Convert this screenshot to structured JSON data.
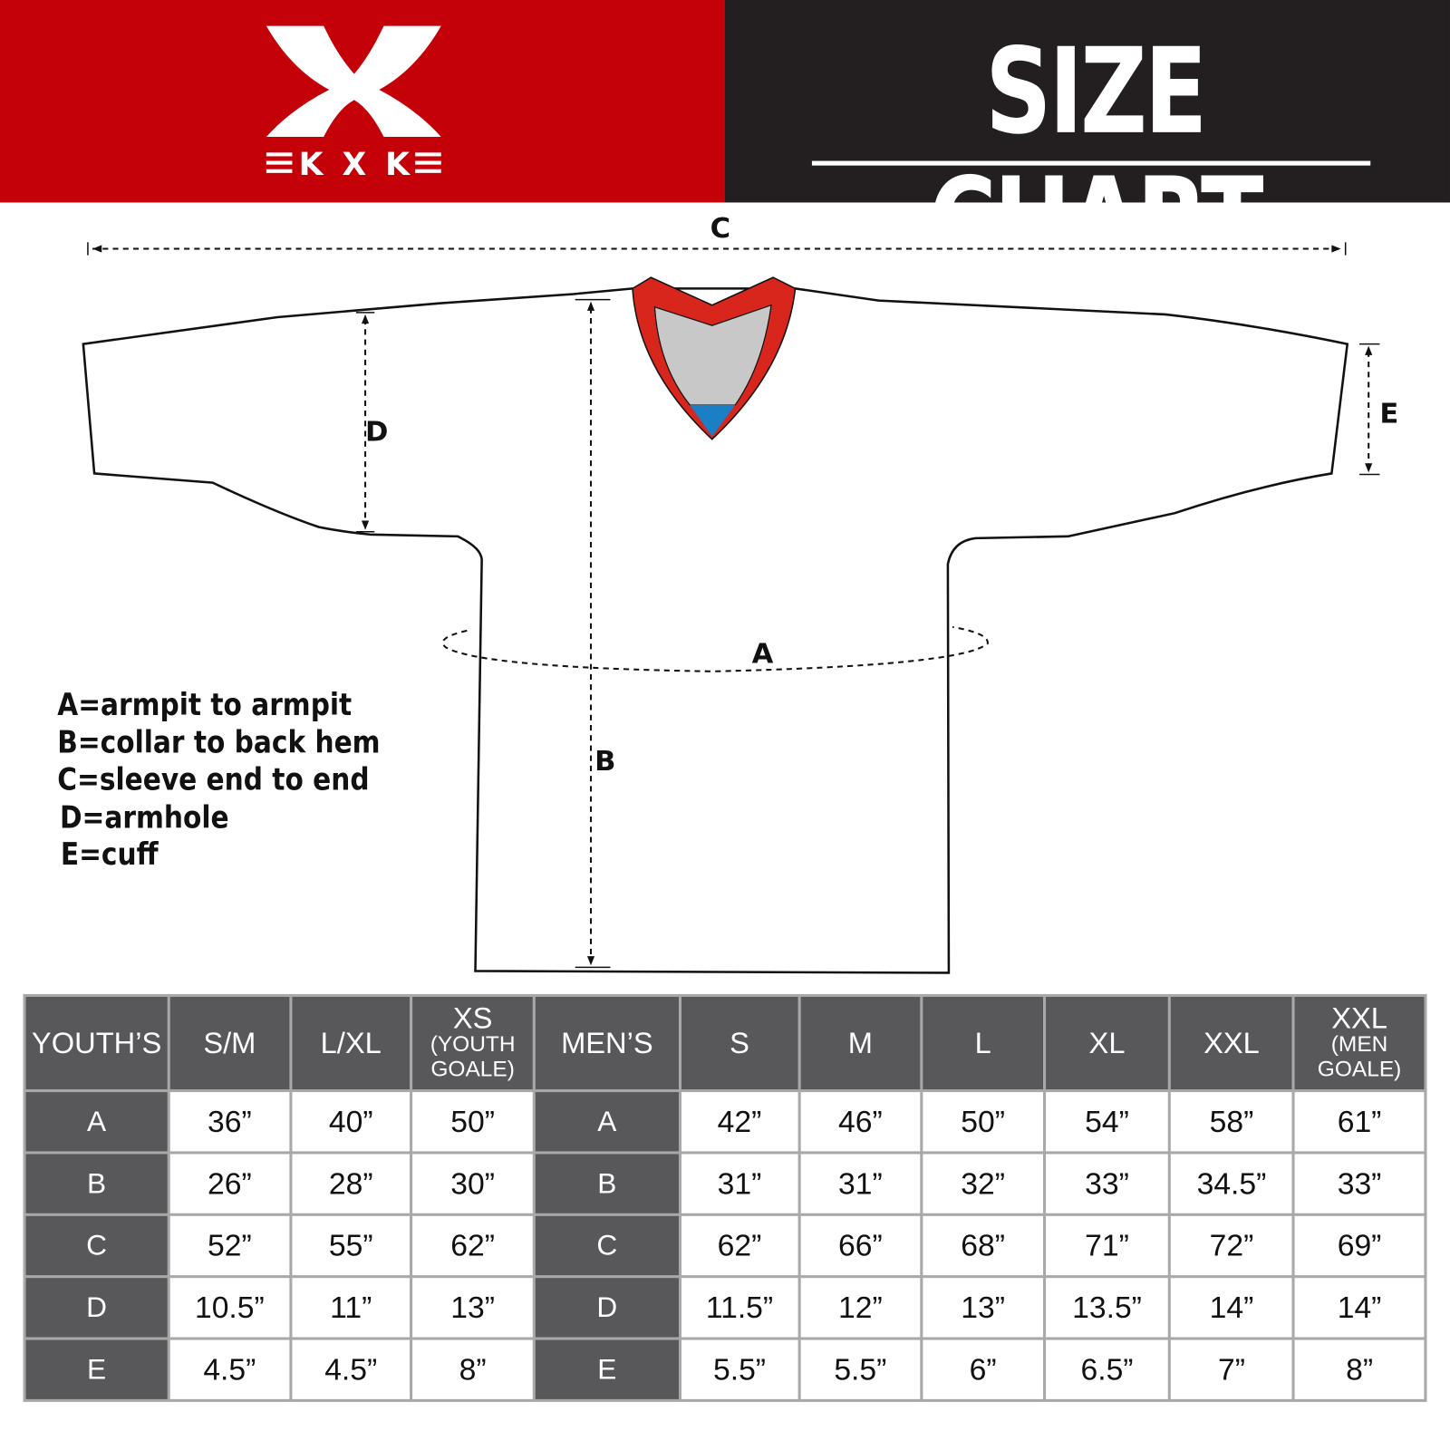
{
  "brand": {
    "logo_text": "KXK",
    "colors": {
      "red": "#c40008",
      "dark": "#231f20",
      "header_gray": "#58585a"
    }
  },
  "title": "SIZE CHART",
  "diagram": {
    "labels": {
      "a": "A",
      "b": "B",
      "c": "C",
      "d": "D",
      "e": "E"
    },
    "collar_colors": {
      "trim": "#d9261c",
      "inner": "#c8c8c8",
      "tip": "#1a7fc4"
    }
  },
  "legend": [
    "A=armpit to armpit",
    "B=collar to back hem",
    "C=sleeve end to end",
    "D=armhole",
    "E=cuff"
  ],
  "table": {
    "youth_header": "YOUTH’S",
    "men_header": "MEN’S",
    "youth_sizes": [
      {
        "main": "S/M",
        "sub": ""
      },
      {
        "main": "L/XL",
        "sub": ""
      },
      {
        "main": "XS",
        "sub": "(YOUTH GOALE)"
      }
    ],
    "men_sizes": [
      {
        "main": "S",
        "sub": ""
      },
      {
        "main": "M",
        "sub": ""
      },
      {
        "main": "L",
        "sub": ""
      },
      {
        "main": "XL",
        "sub": ""
      },
      {
        "main": "XXL",
        "sub": ""
      },
      {
        "main": "XXL",
        "sub": "(MEN GOALE)"
      }
    ],
    "rows": [
      {
        "label": "A",
        "youth": [
          "36”",
          "40”",
          "50”"
        ],
        "men": [
          "42”",
          "46”",
          "50”",
          "54”",
          "58”",
          "61”"
        ]
      },
      {
        "label": "B",
        "youth": [
          "26”",
          "28”",
          "30”"
        ],
        "men": [
          "31”",
          "31”",
          "32”",
          "33”",
          "34.5”",
          "33”"
        ]
      },
      {
        "label": "C",
        "youth": [
          "52”",
          "55”",
          "62”"
        ],
        "men": [
          "62”",
          "66”",
          "68”",
          "71”",
          "72”",
          "69”"
        ]
      },
      {
        "label": "D",
        "youth": [
          "10.5”",
          "11”",
          "13”"
        ],
        "men": [
          "11.5”",
          "12”",
          "13”",
          "13.5”",
          "14”",
          "14”"
        ]
      },
      {
        "label": "E",
        "youth": [
          "4.5”",
          "4.5”",
          "8”"
        ],
        "men": [
          "5.5”",
          "5.5”",
          "6”",
          "6.5”",
          "7”",
          "8”"
        ]
      }
    ]
  }
}
